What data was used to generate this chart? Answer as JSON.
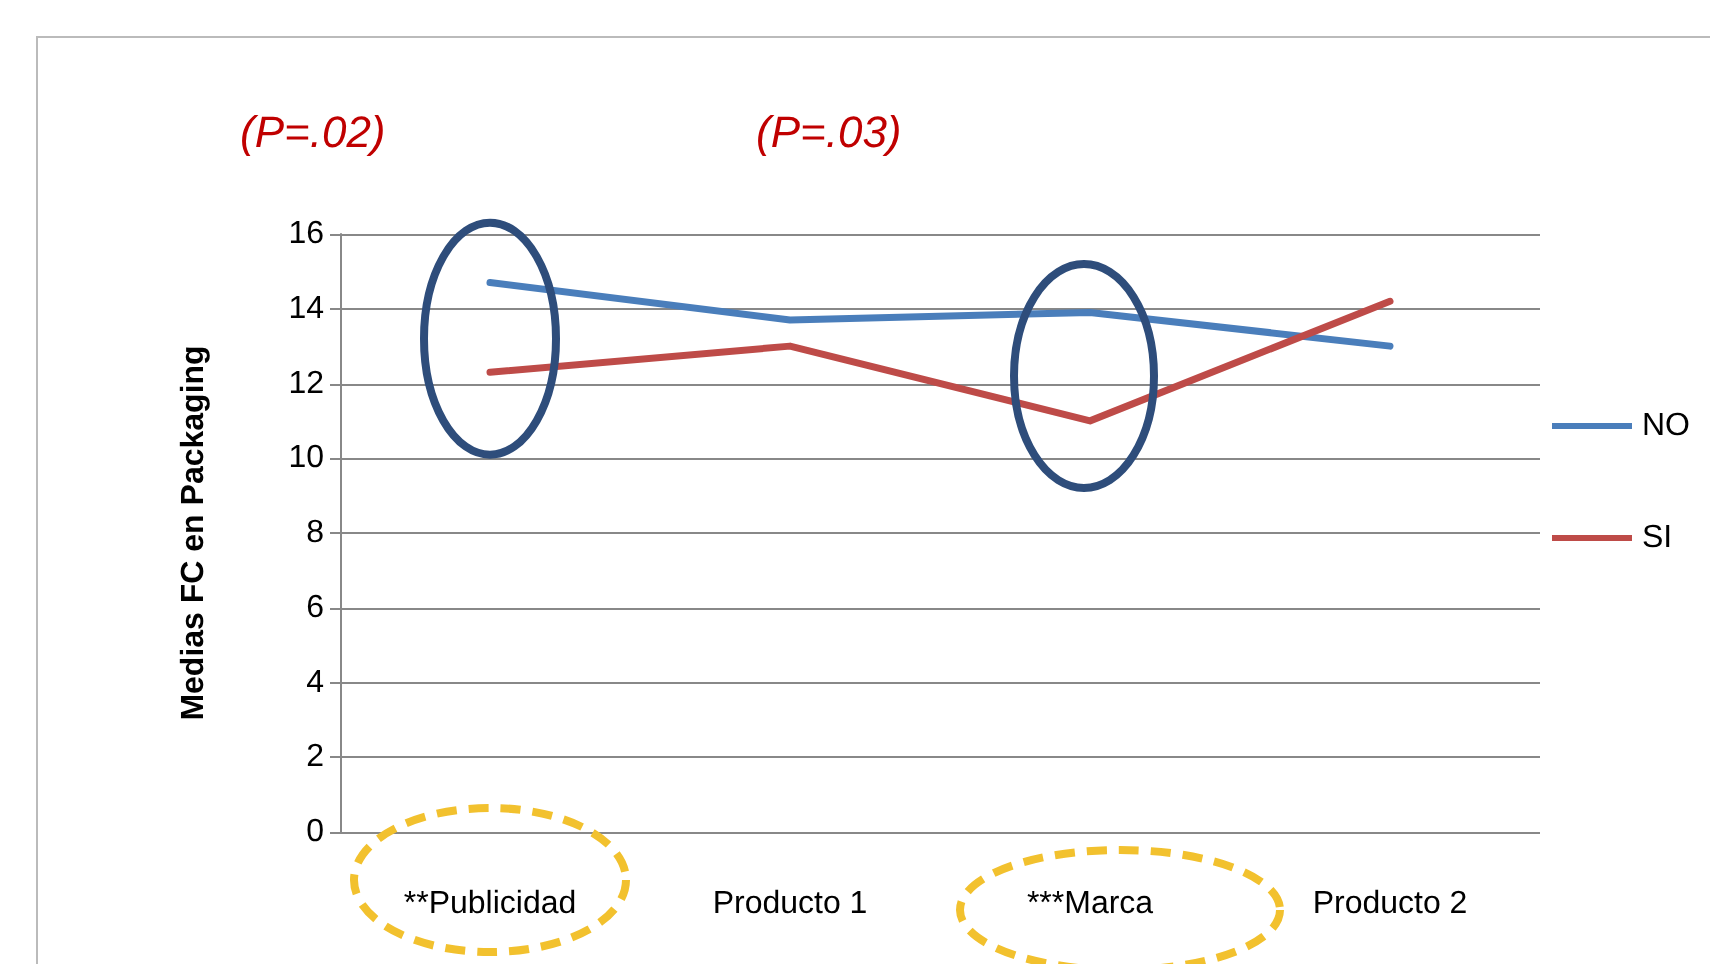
{
  "chart_data": {
    "type": "line",
    "ylabel": "Medias FC en Packaging",
    "categories": [
      "**Publicidad",
      "Producto 1",
      "***Marca",
      "Producto 2"
    ],
    "series": [
      {
        "name": "NO",
        "color": "#4a7ebb",
        "values": [
          14.7,
          13.7,
          13.9,
          13.0
        ]
      },
      {
        "name": "SI",
        "color": "#be4b48",
        "values": [
          12.3,
          13.0,
          11.0,
          14.2
        ]
      }
    ],
    "ylim": [
      0,
      16
    ],
    "yticks": [
      0,
      2,
      4,
      6,
      8,
      10,
      12,
      14,
      16
    ],
    "grid": "y",
    "legend": "right",
    "marker": "none",
    "line_style": "solid",
    "annotations": [
      "(P=.02)",
      "(P=.03)"
    ]
  }
}
